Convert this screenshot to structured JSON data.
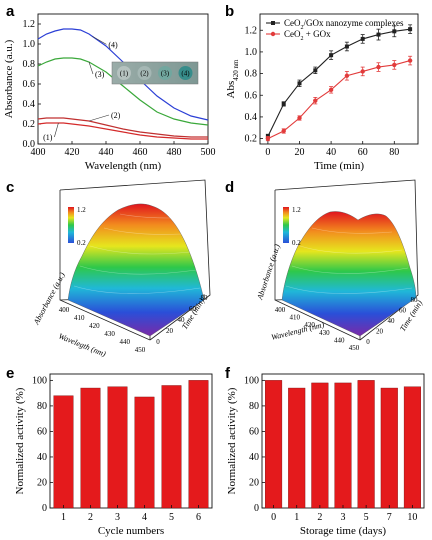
{
  "panels": {
    "a": "a",
    "b": "b",
    "c": "c",
    "d": "d",
    "e": "e",
    "f": "f"
  },
  "chart_data": [
    {
      "id": "a",
      "type": "line",
      "xlabel": "Wavelength (nm)",
      "ylabel": "Absorbance (a.u.)",
      "xlim": [
        400,
        500
      ],
      "ylim": [
        0.0,
        1.3
      ],
      "xticks": [
        400,
        420,
        440,
        460,
        480,
        500
      ],
      "yticks": [
        0.0,
        0.2,
        0.4,
        0.6,
        0.8,
        1.0,
        1.2
      ],
      "inset_labels": [
        "(1)",
        "(2)",
        "(3)",
        "(4)"
      ],
      "series": [
        {
          "label": "(1)",
          "color": "#d42a2a",
          "x": [
            400,
            405,
            410,
            415,
            420,
            430,
            440,
            450,
            460,
            470,
            480,
            490,
            500
          ],
          "y": [
            0.2,
            0.21,
            0.21,
            0.21,
            0.2,
            0.18,
            0.15,
            0.12,
            0.09,
            0.07,
            0.06,
            0.05,
            0.05
          ]
        },
        {
          "label": "(2)",
          "color": "#c03030",
          "x": [
            400,
            405,
            410,
            415,
            420,
            430,
            440,
            450,
            460,
            470,
            480,
            490,
            500
          ],
          "y": [
            0.25,
            0.26,
            0.26,
            0.26,
            0.25,
            0.23,
            0.19,
            0.15,
            0.12,
            0.1,
            0.08,
            0.07,
            0.07
          ]
        },
        {
          "label": "(3)",
          "color": "#3aa83a",
          "x": [
            400,
            405,
            410,
            415,
            420,
            425,
            430,
            440,
            450,
            460,
            470,
            480,
            490,
            500
          ],
          "y": [
            0.78,
            0.82,
            0.85,
            0.86,
            0.86,
            0.85,
            0.82,
            0.72,
            0.58,
            0.44,
            0.32,
            0.25,
            0.21,
            0.19
          ]
        },
        {
          "label": "(4)",
          "color": "#2b3fd6",
          "x": [
            400,
            405,
            410,
            415,
            420,
            425,
            430,
            440,
            450,
            460,
            470,
            480,
            490,
            500
          ],
          "y": [
            1.05,
            1.1,
            1.13,
            1.15,
            1.15,
            1.14,
            1.1,
            0.98,
            0.82,
            0.64,
            0.48,
            0.36,
            0.28,
            0.24
          ]
        }
      ]
    },
    {
      "id": "b",
      "type": "line",
      "xlabel": "Time (min)",
      "ylabel": "Abs",
      "ylabel_sub": "420 nm",
      "xlim": [
        -5,
        95
      ],
      "ylim": [
        0.15,
        1.35
      ],
      "xticks": [
        0,
        20,
        40,
        60,
        80
      ],
      "yticks": [
        0.2,
        0.4,
        0.6,
        0.8,
        1.0,
        1.2
      ],
      "series": [
        {
          "name": "CeO2/GOx nanozyme complexes",
          "legend_parts": [
            "CeO",
            "2",
            "/GOx nanozyme complexes"
          ],
          "color": "#222222",
          "x": [
            0,
            10,
            20,
            30,
            40,
            50,
            60,
            70,
            80,
            90
          ],
          "y": [
            0.22,
            0.52,
            0.71,
            0.83,
            0.97,
            1.05,
            1.12,
            1.16,
            1.19,
            1.21
          ],
          "err": [
            0.02,
            0.02,
            0.03,
            0.03,
            0.04,
            0.04,
            0.04,
            0.05,
            0.05,
            0.04
          ]
        },
        {
          "name": "CeO2 + GOx",
          "legend_parts": [
            "CeO",
            "2",
            " + GOx"
          ],
          "color": "#e23b3b",
          "x": [
            0,
            10,
            20,
            30,
            40,
            50,
            60,
            70,
            80,
            90
          ],
          "y": [
            0.2,
            0.27,
            0.39,
            0.55,
            0.65,
            0.78,
            0.82,
            0.86,
            0.88,
            0.92
          ],
          "err": [
            0.02,
            0.02,
            0.02,
            0.03,
            0.03,
            0.04,
            0.04,
            0.04,
            0.04,
            0.04
          ]
        }
      ]
    },
    {
      "id": "c",
      "type": "surface3d",
      "xlabel": "Wavelegth (nm)",
      "ylabel": "Absorbance (a.u.)",
      "zlabel": "Time (min)",
      "colorbar_ticks": [
        "1.2",
        "0.2"
      ],
      "wavelength_ticks": [
        "400",
        "410",
        "420",
        "430",
        "440",
        "450"
      ],
      "time_ticks": [
        "0",
        "20",
        "40",
        "60",
        "80"
      ]
    },
    {
      "id": "d",
      "type": "surface3d",
      "xlabel": "Wavelength (nm)",
      "ylabel": "Absorbance (a.u.)",
      "zlabel": "Time (min)",
      "colorbar_ticks": [
        "1.2",
        "0.2"
      ],
      "wavelength_ticks": [
        "400",
        "410",
        "420",
        "430",
        "440",
        "450"
      ],
      "time_ticks": [
        "0",
        "20",
        "40",
        "60",
        "80"
      ]
    },
    {
      "id": "e",
      "type": "bar",
      "xlabel": "Cycle numbers",
      "ylabel": "Normalized activity (%)",
      "categories": [
        "1",
        "2",
        "3",
        "4",
        "5",
        "6"
      ],
      "values": [
        88,
        94,
        95,
        87,
        96,
        100
      ],
      "ylim": [
        0,
        105
      ],
      "yticks": [
        0,
        20,
        40,
        60,
        80,
        100
      ],
      "color": "#e41a1c"
    },
    {
      "id": "f",
      "type": "bar",
      "xlabel": "Storage time (days)",
      "ylabel": "Normalized activity (%)",
      "categories": [
        "0",
        "1",
        "2",
        "3",
        "5",
        "7",
        "10"
      ],
      "values": [
        100,
        94,
        98,
        98,
        100,
        94,
        95
      ],
      "ylim": [
        0,
        105
      ],
      "yticks": [
        0,
        20,
        40,
        60,
        80,
        100
      ],
      "color": "#e41a1c"
    }
  ]
}
